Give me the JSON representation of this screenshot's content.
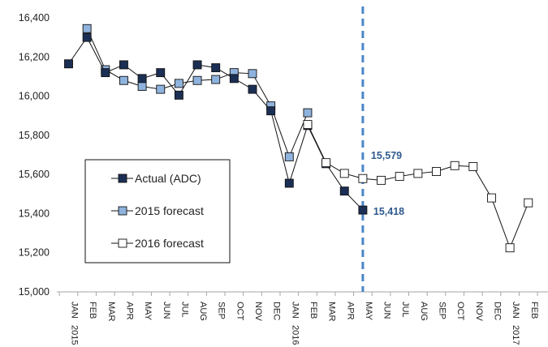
{
  "chart_data": {
    "type": "line",
    "title": "",
    "xlabel": "",
    "ylabel": "",
    "ylim": [
      15000,
      16400
    ],
    "yticks": [
      "15,000",
      "15,200",
      "15,400",
      "15,600",
      "15,800",
      "16,000",
      "16,200",
      "16,400"
    ],
    "ytick_values": [
      15000,
      15200,
      15400,
      15600,
      15800,
      16000,
      16200,
      16400
    ],
    "categories": [
      "JAN 2015",
      "FEB",
      "MAR",
      "APR",
      "MAY",
      "JUN",
      "JUL",
      "AUG",
      "SEP",
      "OCT",
      "NOV",
      "DEC",
      "JAN 2016",
      "FEB",
      "MAR",
      "APR",
      "MAY",
      "JUN",
      "JUL",
      "AUG",
      "SEP",
      "OCT",
      "NOV",
      "DEC",
      "JAN 2017",
      "FEB"
    ],
    "x_labels": [
      "JAN",
      "FEB",
      "MAR",
      "APR",
      "MAY",
      "JUN",
      "JUL",
      "AUG",
      "SEP",
      "OCT",
      "NOV",
      "DEC",
      "JAN",
      "FEB",
      "MAR",
      "APR",
      "MAY",
      "JUN",
      "JUL",
      "AUG",
      "SEP",
      "OCT",
      "NOV",
      "DEC",
      "JAN",
      "FEB"
    ],
    "year_labels": [
      {
        "index": 0,
        "label": "2015"
      },
      {
        "index": 12,
        "label": "2016"
      },
      {
        "index": 24,
        "label": "2017"
      }
    ],
    "grid": false,
    "legend_position": "left",
    "series": [
      {
        "name": "Actual (ADC)",
        "color": "#1b2f55",
        "values": [
          16165,
          16300,
          16120,
          16160,
          16090,
          16120,
          16005,
          16160,
          16145,
          16090,
          16035,
          15925,
          15555,
          15850,
          15655,
          15515,
          15418,
          null,
          null,
          null,
          null,
          null,
          null,
          null,
          null,
          null
        ]
      },
      {
        "name": "2015 forecast",
        "color": "#8fb3de",
        "values": [
          null,
          16345,
          16135,
          16080,
          16050,
          16035,
          16065,
          16080,
          16085,
          16120,
          16115,
          15950,
          15690,
          15915,
          null,
          null,
          null,
          null,
          null,
          null,
          null,
          null,
          null,
          null,
          null,
          null
        ]
      },
      {
        "name": "2016 forecast",
        "color": "#ffffff",
        "values": [
          null,
          null,
          null,
          null,
          null,
          null,
          null,
          null,
          null,
          null,
          null,
          null,
          null,
          15855,
          15660,
          15605,
          15579,
          15570,
          15590,
          15605,
          15615,
          15645,
          15640,
          15480,
          15225,
          15455
        ]
      }
    ],
    "annotations": [
      {
        "text": "15,579",
        "series": "2016 forecast",
        "index": 16
      },
      {
        "text": "15,418",
        "series": "Actual (ADC)",
        "index": 16
      }
    ],
    "vertical_marker": {
      "index": 16,
      "color": "#4a86c8",
      "style": "dashed"
    },
    "axis_color": "#a6a6a6"
  }
}
